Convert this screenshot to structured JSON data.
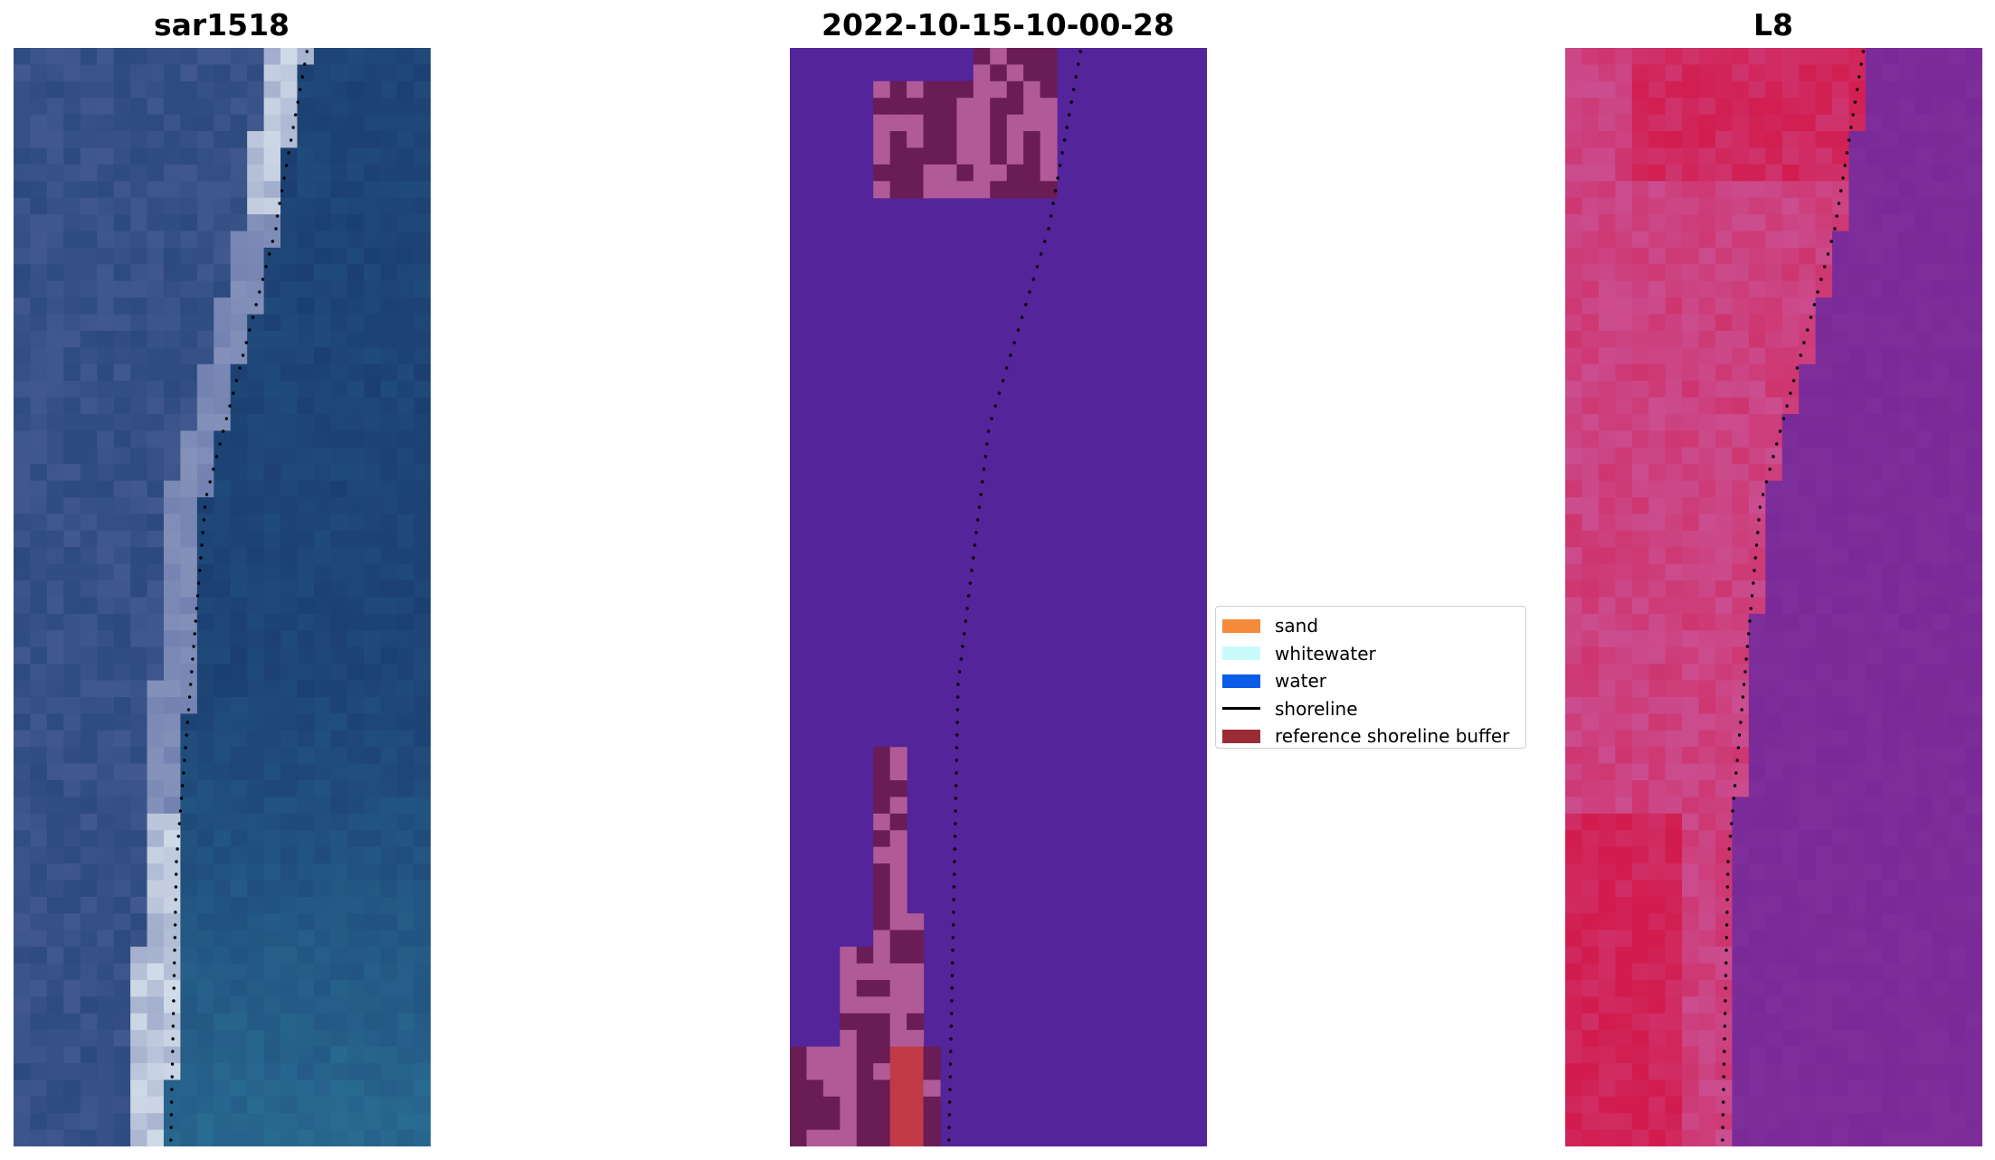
{
  "panels": [
    {
      "title": "sar1518"
    },
    {
      "title": "2022-10-15-10-00-28"
    },
    {
      "title": "L8"
    }
  ],
  "legend": {
    "items": [
      {
        "label": "sand",
        "color": "#f58a3a",
        "kind": "patch"
      },
      {
        "label": "whitewater",
        "color": "#c9fbfb",
        "kind": "patch"
      },
      {
        "label": "water",
        "color": "#0a5ce8",
        "kind": "patch"
      },
      {
        "label": "shoreline",
        "color": "#000000",
        "kind": "line"
      },
      {
        "label": "reference shoreline buffer",
        "color": "#9a2c36",
        "kind": "patch"
      }
    ]
  },
  "colors": {
    "rgb_ocean": "#1c3f72",
    "rgb_ocean_teal": "#2a6f94",
    "rgb_beach": "#5a6aa2",
    "rgb_whitewater": "#e6eef4",
    "class_water": "#54249a",
    "class_buffer_dark": "#6a1c55",
    "class_buffer_pink": "#b05a98",
    "class_buffer_red": "#c23a45",
    "l8_water": "#7a2a98",
    "l8_land_pink": "#c95aa0",
    "l8_land_red": "#d21c4e",
    "shoreline_dot": "#000000"
  }
}
